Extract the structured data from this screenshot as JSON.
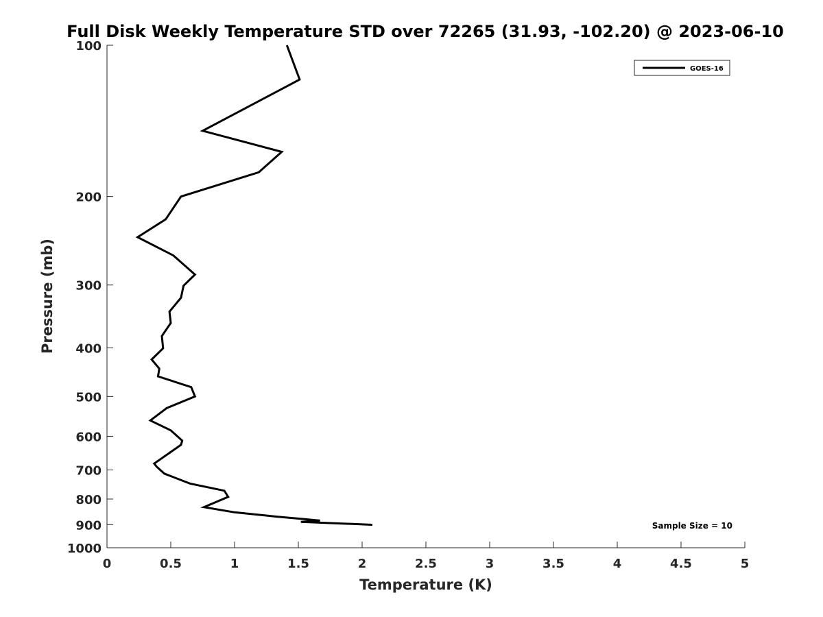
{
  "chart_data": {
    "type": "line",
    "title": "Full Disk Weekly Temperature STD over 72265 (31.93, -102.20) @ 2023-06-10",
    "xlabel": "Temperature (K)",
    "ylabel": "Pressure (mb)",
    "xlim": [
      0,
      5
    ],
    "ylim": [
      100,
      1000
    ],
    "y_scale": "log",
    "y_reversed": true,
    "grid": false,
    "legend_position": "top-right",
    "x_ticks": [
      0,
      0.5,
      1,
      1.5,
      2,
      2.5,
      3,
      3.5,
      4,
      4.5,
      5
    ],
    "x_tick_labels": [
      "0",
      "0.5",
      "1",
      "1.5",
      "2",
      "2.5",
      "3",
      "3.5",
      "4",
      "4.5",
      "5"
    ],
    "y_ticks": [
      100,
      200,
      300,
      400,
      500,
      600,
      700,
      800,
      900,
      1000
    ],
    "y_tick_labels": [
      "100",
      "200",
      "300",
      "400",
      "500",
      "600",
      "700",
      "800",
      "900",
      "1000"
    ],
    "annotation": "Sample Size = 10",
    "series": [
      {
        "name": "GOES-16",
        "color": "#000000",
        "points": [
          {
            "x": 1.41,
            "y": 100
          },
          {
            "x": 1.51,
            "y": 117
          },
          {
            "x": 0.75,
            "y": 148
          },
          {
            "x": 1.37,
            "y": 163
          },
          {
            "x": 1.19,
            "y": 179
          },
          {
            "x": 0.58,
            "y": 200
          },
          {
            "x": 0.46,
            "y": 222
          },
          {
            "x": 0.24,
            "y": 241
          },
          {
            "x": 0.52,
            "y": 262
          },
          {
            "x": 0.69,
            "y": 286
          },
          {
            "x": 0.6,
            "y": 301
          },
          {
            "x": 0.58,
            "y": 318
          },
          {
            "x": 0.49,
            "y": 339
          },
          {
            "x": 0.5,
            "y": 357
          },
          {
            "x": 0.43,
            "y": 379
          },
          {
            "x": 0.44,
            "y": 401
          },
          {
            "x": 0.35,
            "y": 422
          },
          {
            "x": 0.41,
            "y": 440
          },
          {
            "x": 0.4,
            "y": 456
          },
          {
            "x": 0.66,
            "y": 479
          },
          {
            "x": 0.69,
            "y": 500
          },
          {
            "x": 0.47,
            "y": 527
          },
          {
            "x": 0.34,
            "y": 558
          },
          {
            "x": 0.5,
            "y": 584
          },
          {
            "x": 0.59,
            "y": 612
          },
          {
            "x": 0.58,
            "y": 624
          },
          {
            "x": 0.48,
            "y": 650
          },
          {
            "x": 0.37,
            "y": 680
          },
          {
            "x": 0.39,
            "y": 690
          },
          {
            "x": 0.45,
            "y": 712
          },
          {
            "x": 0.65,
            "y": 745
          },
          {
            "x": 0.92,
            "y": 770
          },
          {
            "x": 0.95,
            "y": 792
          },
          {
            "x": 0.76,
            "y": 830
          },
          {
            "x": 1.0,
            "y": 850
          },
          {
            "x": 1.33,
            "y": 867
          },
          {
            "x": 1.55,
            "y": 877
          },
          {
            "x": 1.67,
            "y": 883
          },
          {
            "x": 1.52,
            "y": 888
          },
          {
            "x": 2.08,
            "y": 900
          }
        ]
      }
    ]
  }
}
